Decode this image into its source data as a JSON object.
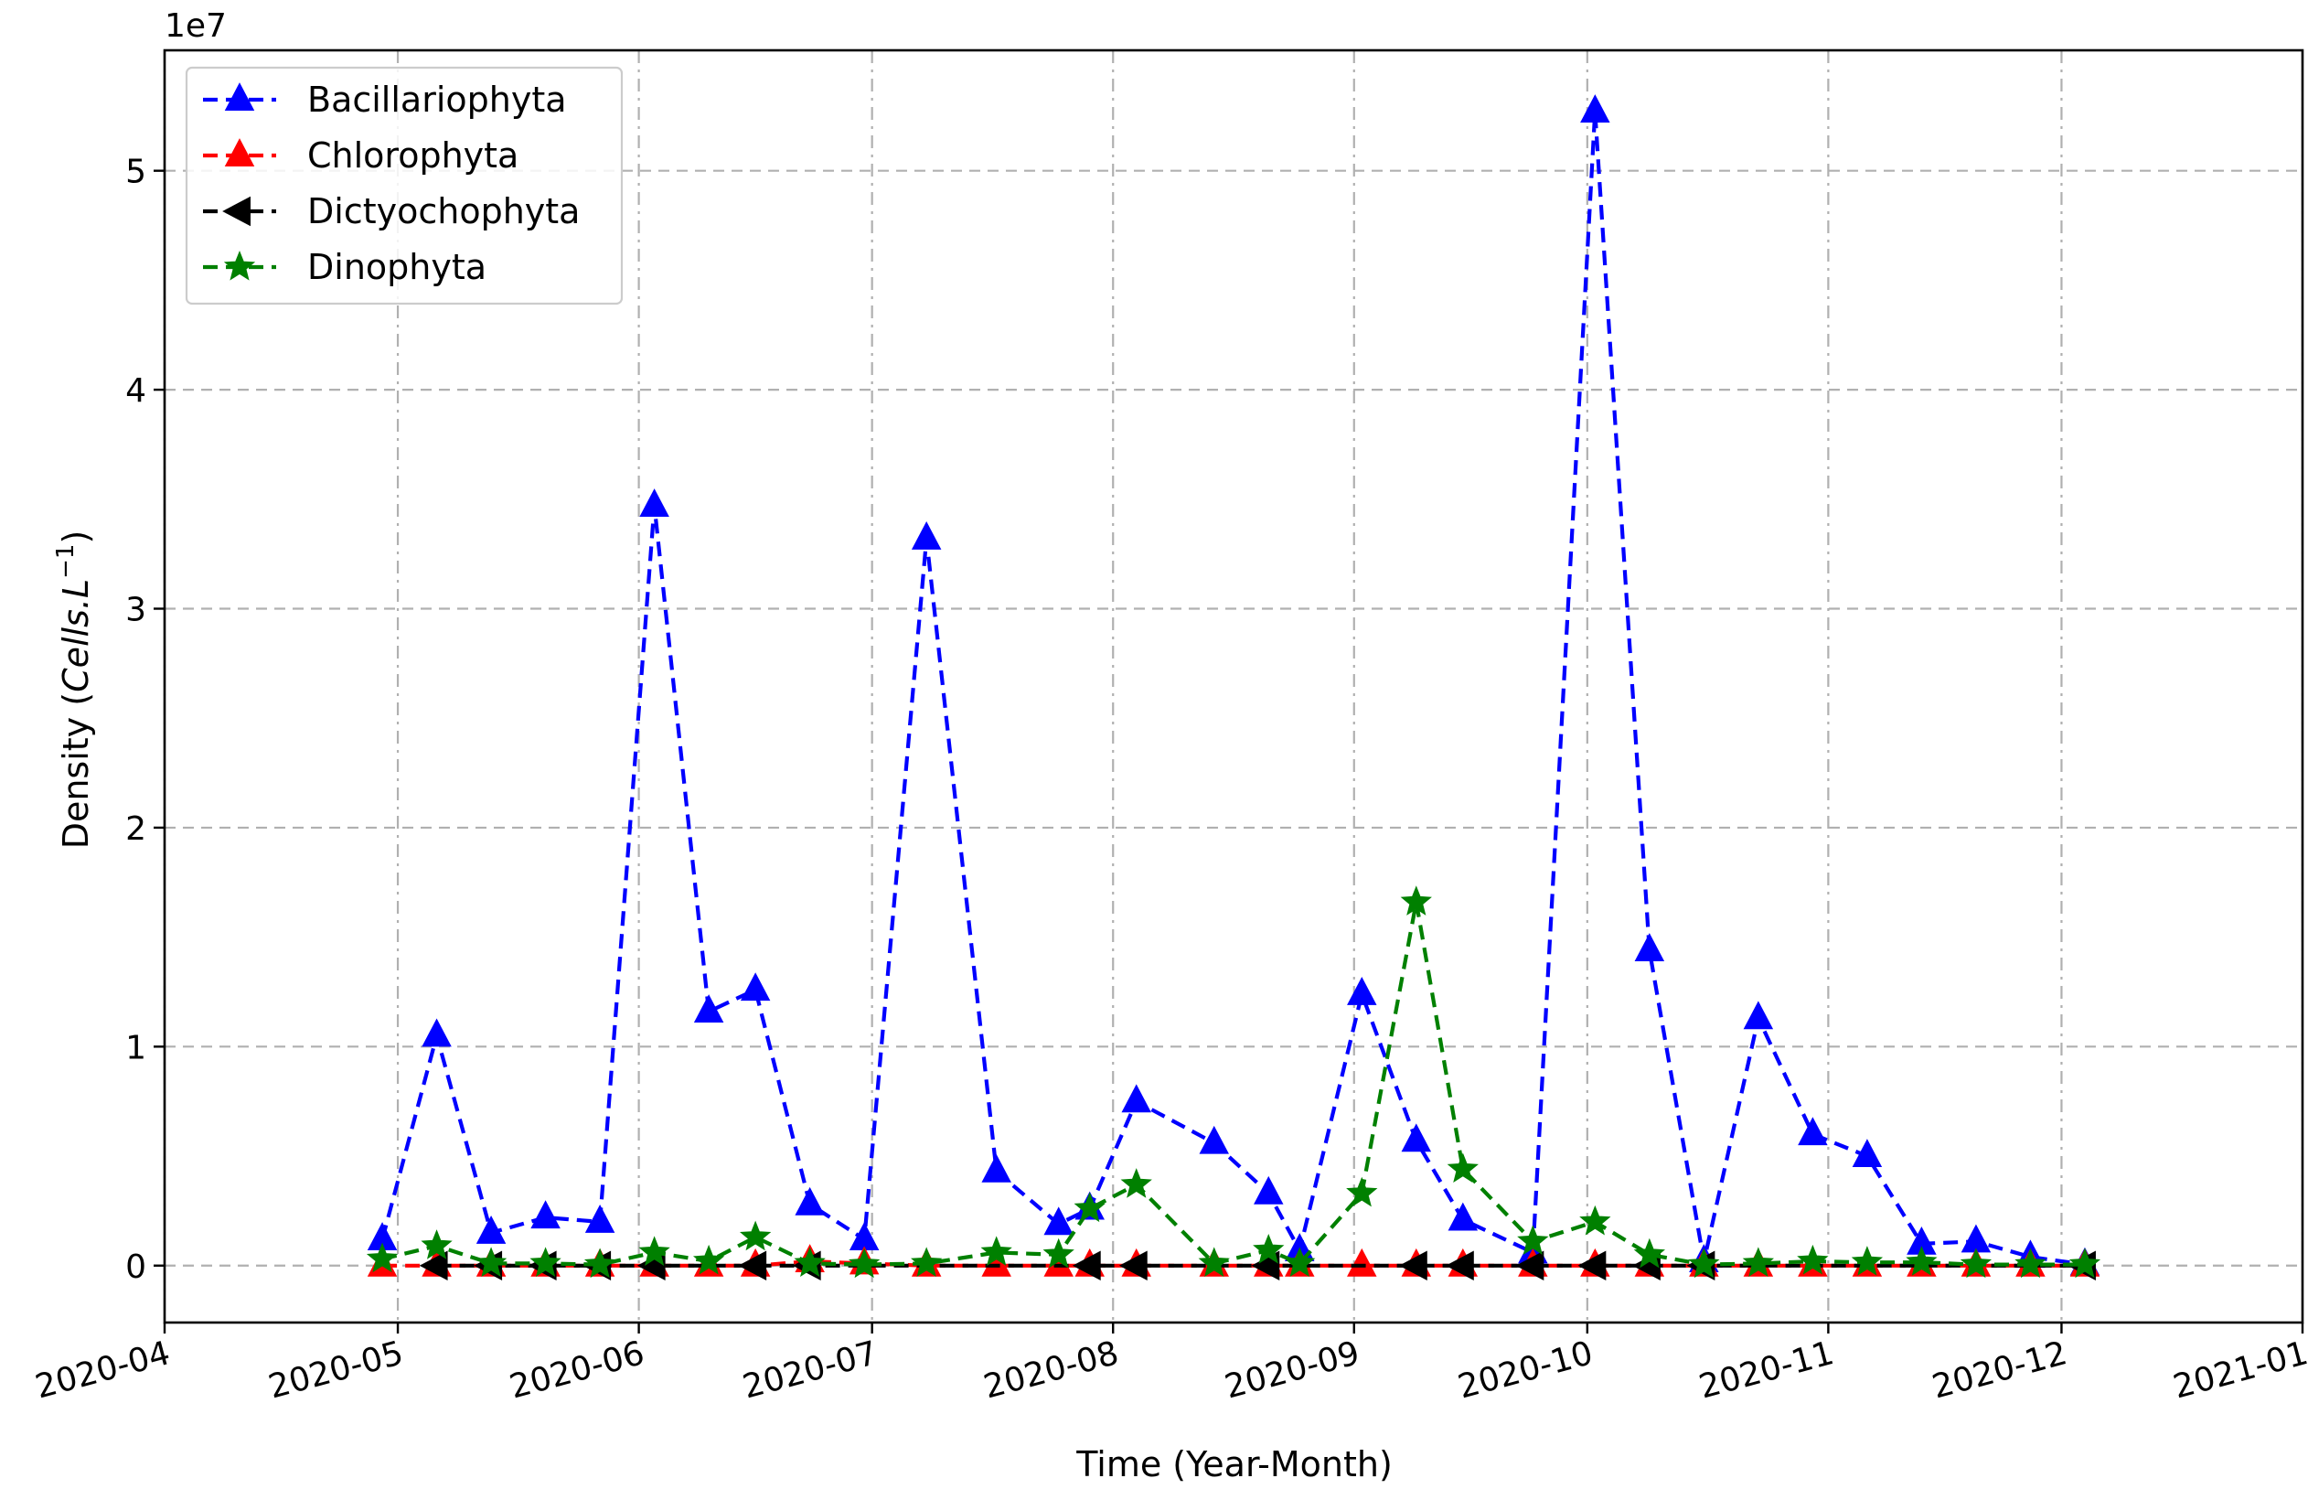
{
  "chart_data": {
    "type": "line",
    "xlabel": "Time (Year-Month)",
    "ylabel_prefix": "Density (",
    "ylabel_units": "Cells.L",
    "ylabel_exp": "−1",
    "ylabel_suffix": ")",
    "y_offset_label": "1e7",
    "y_scale": 10000000,
    "xlim": [
      "2020-04-01",
      "2021-01-01"
    ],
    "ylim": [
      -2600000,
      55500000
    ],
    "x_ticks": [
      "2020-04-01",
      "2020-05-01",
      "2020-06-01",
      "2020-07-01",
      "2020-08-01",
      "2020-09-01",
      "2020-10-01",
      "2020-11-01",
      "2020-12-01",
      "2021-01-01"
    ],
    "x_tick_labels": [
      "2020-04",
      "2020-05",
      "2020-06",
      "2020-07",
      "2020-08",
      "2020-09",
      "2020-10",
      "2020-11",
      "2020-12",
      "2021-01"
    ],
    "y_ticks": [
      0,
      10000000,
      20000000,
      30000000,
      40000000,
      50000000
    ],
    "y_tick_labels": [
      "0",
      "1",
      "2",
      "3",
      "4",
      "5"
    ],
    "grid": true,
    "legend_position": "top-left",
    "series": [
      {
        "name": "Bacillariophyta",
        "color": "#0000ff",
        "marker": "triangle-up",
        "points": [
          [
            "2020-04-29",
            1200000
          ],
          [
            "2020-05-06",
            10500000
          ],
          [
            "2020-05-13",
            1500000
          ],
          [
            "2020-05-20",
            2200000
          ],
          [
            "2020-05-27",
            2000000
          ],
          [
            "2020-06-03",
            34700000
          ],
          [
            "2020-06-10",
            11600000
          ],
          [
            "2020-06-16",
            12600000
          ],
          [
            "2020-06-23",
            2800000
          ],
          [
            "2020-06-30",
            1200000
          ],
          [
            "2020-07-08",
            33200000
          ],
          [
            "2020-07-17",
            4300000
          ],
          [
            "2020-07-25",
            1900000
          ],
          [
            "2020-07-29",
            2600000
          ],
          [
            "2020-08-04",
            7500000
          ],
          [
            "2020-08-14",
            5600000
          ],
          [
            "2020-08-21",
            3300000
          ],
          [
            "2020-08-25",
            700000
          ],
          [
            "2020-09-02",
            12400000
          ],
          [
            "2020-09-09",
            5700000
          ],
          [
            "2020-09-15",
            2100000
          ],
          [
            "2020-09-24",
            600000
          ],
          [
            "2020-10-02",
            52700000
          ],
          [
            "2020-10-09",
            14400000
          ],
          [
            "2020-10-16",
            200000
          ],
          [
            "2020-10-23",
            11300000
          ],
          [
            "2020-10-30",
            6000000
          ],
          [
            "2020-11-06",
            5000000
          ],
          [
            "2020-11-13",
            1000000
          ],
          [
            "2020-11-20",
            1100000
          ],
          [
            "2020-11-27",
            400000
          ],
          [
            "2020-12-04",
            50000
          ]
        ]
      },
      {
        "name": "Chlorophyta",
        "color": "#ff0000",
        "marker": "triangle-up",
        "points": [
          [
            "2020-04-29",
            0
          ],
          [
            "2020-05-06",
            0
          ],
          [
            "2020-05-13",
            0
          ],
          [
            "2020-05-20",
            0
          ],
          [
            "2020-05-27",
            0
          ],
          [
            "2020-06-03",
            0
          ],
          [
            "2020-06-10",
            0
          ],
          [
            "2020-06-16",
            0
          ],
          [
            "2020-06-23",
            200000
          ],
          [
            "2020-06-30",
            100000
          ],
          [
            "2020-07-08",
            0
          ],
          [
            "2020-07-17",
            0
          ],
          [
            "2020-07-25",
            0
          ],
          [
            "2020-07-29",
            0
          ],
          [
            "2020-08-04",
            0
          ],
          [
            "2020-08-14",
            0
          ],
          [
            "2020-08-21",
            0
          ],
          [
            "2020-08-25",
            0
          ],
          [
            "2020-09-02",
            0
          ],
          [
            "2020-09-09",
            0
          ],
          [
            "2020-09-15",
            0
          ],
          [
            "2020-09-24",
            0
          ],
          [
            "2020-10-02",
            0
          ],
          [
            "2020-10-09",
            0
          ],
          [
            "2020-10-16",
            0
          ],
          [
            "2020-10-23",
            0
          ],
          [
            "2020-10-30",
            0
          ],
          [
            "2020-11-06",
            0
          ],
          [
            "2020-11-13",
            0
          ],
          [
            "2020-11-20",
            0
          ],
          [
            "2020-11-27",
            0
          ],
          [
            "2020-12-04",
            0
          ]
        ]
      },
      {
        "name": "Dictyochophyta",
        "color": "#000000",
        "marker": "triangle-left",
        "points": [
          [
            "2020-05-06",
            0
          ],
          [
            "2020-05-13",
            0
          ],
          [
            "2020-05-20",
            0
          ],
          [
            "2020-05-27",
            0
          ],
          [
            "2020-06-03",
            0
          ],
          [
            "2020-06-16",
            0
          ],
          [
            "2020-06-23",
            0
          ],
          [
            "2020-07-29",
            0
          ],
          [
            "2020-08-04",
            0
          ],
          [
            "2020-08-21",
            0
          ],
          [
            "2020-09-09",
            0
          ],
          [
            "2020-09-15",
            0
          ],
          [
            "2020-09-24",
            0
          ],
          [
            "2020-10-02",
            0
          ],
          [
            "2020-10-09",
            0
          ],
          [
            "2020-10-16",
            0
          ],
          [
            "2020-12-04",
            0
          ]
        ]
      },
      {
        "name": "Dinophyta",
        "color": "#008000",
        "marker": "star",
        "points": [
          [
            "2020-04-29",
            300000
          ],
          [
            "2020-05-06",
            900000
          ],
          [
            "2020-05-13",
            100000
          ],
          [
            "2020-05-20",
            100000
          ],
          [
            "2020-05-27",
            50000
          ],
          [
            "2020-06-03",
            600000
          ],
          [
            "2020-06-10",
            200000
          ],
          [
            "2020-06-16",
            1300000
          ],
          [
            "2020-06-23",
            100000
          ],
          [
            "2020-06-30",
            50000
          ],
          [
            "2020-07-08",
            100000
          ],
          [
            "2020-07-17",
            600000
          ],
          [
            "2020-07-25",
            500000
          ],
          [
            "2020-07-29",
            2600000
          ],
          [
            "2020-08-04",
            3700000
          ],
          [
            "2020-08-14",
            100000
          ],
          [
            "2020-08-21",
            700000
          ],
          [
            "2020-08-25",
            100000
          ],
          [
            "2020-09-02",
            3300000
          ],
          [
            "2020-09-09",
            16600000
          ],
          [
            "2020-09-15",
            4400000
          ],
          [
            "2020-09-24",
            1100000
          ],
          [
            "2020-10-02",
            2000000
          ],
          [
            "2020-10-09",
            500000
          ],
          [
            "2020-10-16",
            50000
          ],
          [
            "2020-10-23",
            100000
          ],
          [
            "2020-10-30",
            200000
          ],
          [
            "2020-11-06",
            150000
          ],
          [
            "2020-11-13",
            150000
          ],
          [
            "2020-11-20",
            50000
          ],
          [
            "2020-11-27",
            50000
          ],
          [
            "2020-12-04",
            50000
          ]
        ]
      }
    ]
  }
}
